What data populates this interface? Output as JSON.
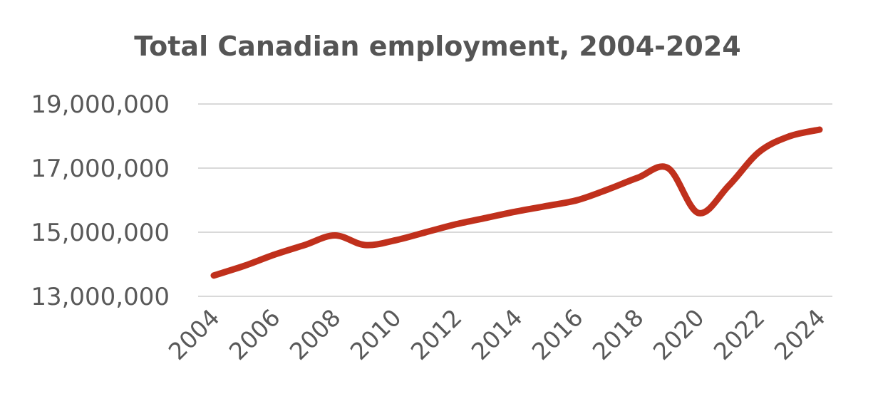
{
  "chart_data": {
    "type": "line",
    "title": "Total Canadian employment, 2004-2024",
    "xlabel": "",
    "ylabel": "",
    "x": [
      2004,
      2005,
      2006,
      2007,
      2008,
      2009,
      2010,
      2011,
      2012,
      2013,
      2014,
      2015,
      2016,
      2017,
      2018,
      2019,
      2020,
      2021,
      2022,
      2023,
      2024
    ],
    "x_tick_labels": [
      "2004",
      "2006",
      "2008",
      "2010",
      "2012",
      "2014",
      "2016",
      "2018",
      "2020",
      "2022",
      "2024"
    ],
    "y_ticks": [
      13000000,
      15000000,
      17000000,
      19000000
    ],
    "y_tick_labels": [
      "13,000,000",
      "15,000,000",
      "17,000,000",
      "19,000,000"
    ],
    "ylim": [
      13000000,
      19000000
    ],
    "grid": true,
    "series": [
      {
        "color": "#c0301c",
        "values": [
          13650000,
          13950000,
          14300000,
          14600000,
          14900000,
          14600000,
          14750000,
          15000000,
          15250000,
          15450000,
          15650000,
          15820000,
          16000000,
          16330000,
          16700000,
          17000000,
          15600000,
          16450000,
          17500000,
          17990000,
          18200000
        ]
      }
    ]
  }
}
